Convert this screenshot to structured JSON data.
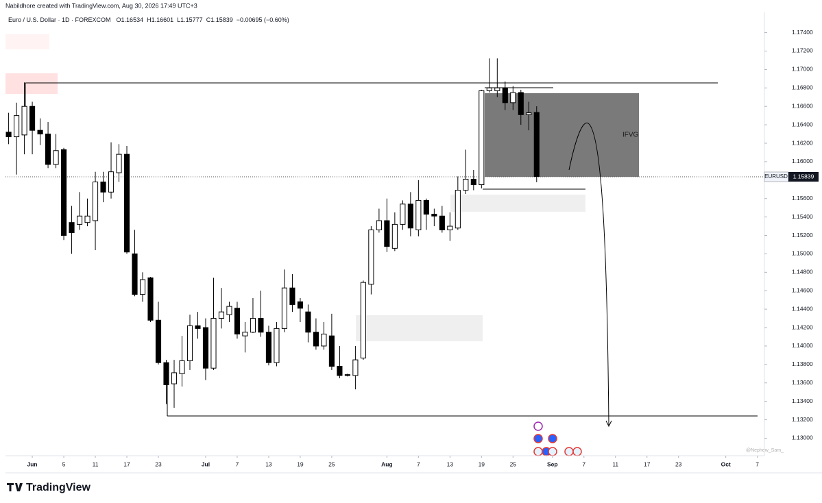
{
  "header": {
    "author_line": "Nabildhore created with TradingView.com, Aug 30, 2026 17:49 UTC+3",
    "symbol": "Euro / U.S. Dollar · 1D · FOREXCOM",
    "ohlc_prefixes": [
      "O",
      "H",
      "L",
      "C"
    ],
    "change": "−0.00695 (−0.60%)"
  },
  "chart_data": {
    "type": "candlestick",
    "symbol_tag": "EURUSD",
    "annotation": "IFVG",
    "up_color": "#ffffff",
    "down_color": "#000000",
    "outline_color": "#000000",
    "open": [
      1.1632,
      1.1627,
      1.1629,
      1.166,
      1.1634,
      1.163,
      1.1597,
      1.1613,
      1.1534,
      1.1532,
      1.1534,
      1.1536,
      1.1578,
      1.1567,
      1.1588,
      1.1608,
      1.15,
      1.1456,
      1.1474,
      1.1428,
      1.1382,
      1.1359,
      1.137,
      1.1384,
      1.1422,
      1.142,
      1.1376,
      1.143,
      1.1434,
      1.1441,
      1.1411,
      1.1415,
      1.143,
      1.1415,
      1.1382,
      1.1419,
      1.1463,
      1.1448,
      1.1437,
      1.1415,
      1.14,
      1.1411,
      1.1378,
      1.1369,
      1.1368,
      1.1387,
      1.1467,
      1.1526,
      1.1536,
      1.1506,
      1.1532,
      1.1554,
      1.1526,
      1.1558,
      1.1543,
      1.1541,
      1.1526,
      1.1528,
      1.1569,
      1.1581,
      1.1575,
      1.1677,
      1.1677,
      1.168,
      1.1664,
      1.1675,
      1.1651,
      1.16534
    ],
    "high": [
      1.1653,
      1.1664,
      1.1686,
      1.1665,
      1.1647,
      1.1643,
      1.163,
      1.1615,
      1.1552,
      1.1567,
      1.156,
      1.1589,
      1.1589,
      1.1621,
      1.1619,
      1.1617,
      1.1526,
      1.148,
      1.1475,
      1.1448,
      1.1385,
      1.1385,
      1.1411,
      1.1434,
      1.1437,
      1.143,
      1.1474,
      1.1463,
      1.1448,
      1.1448,
      1.1426,
      1.1452,
      1.146,
      1.1422,
      1.1426,
      1.1483,
      1.1478,
      1.1452,
      1.1445,
      1.143,
      1.1426,
      1.1435,
      1.14,
      1.137,
      1.14,
      1.1471,
      1.153,
      1.1549,
      1.156,
      1.1545,
      1.1558,
      1.1567,
      1.158,
      1.156,
      1.1549,
      1.1552,
      1.1545,
      1.1584,
      1.1613,
      1.1591,
      1.1678,
      1.1712,
      1.1712,
      1.1687,
      1.1682,
      1.1678,
      1.1665,
      1.16601
    ],
    "low": [
      1.1619,
      1.1586,
      1.1608,
      1.1608,
      1.1618,
      1.1593,
      1.1593,
      1.1515,
      1.15,
      1.1526,
      1.153,
      1.1504,
      1.1556,
      1.156,
      1.1578,
      1.15,
      1.1454,
      1.1448,
      1.1426,
      1.138,
      1.1337,
      1.1333,
      1.1356,
      1.1374,
      1.1408,
      1.1363,
      1.1374,
      1.1419,
      1.1426,
      1.1408,
      1.1393,
      1.1414,
      1.141,
      1.1379,
      1.1378,
      1.1415,
      1.1437,
      1.1426,
      1.1404,
      1.1396,
      1.1396,
      1.1374,
      1.1365,
      1.1367,
      1.1353,
      1.1385,
      1.1456,
      1.1523,
      1.1502,
      1.1503,
      1.1526,
      1.1519,
      1.1519,
      1.1526,
      1.153,
      1.1523,
      1.1514,
      1.1526,
      1.1565,
      1.1569,
      1.1571,
      1.1675,
      1.167,
      1.1656,
      1.1656,
      1.164,
      1.1634,
      1.15777
    ],
    "close": [
      1.1627,
      1.165,
      1.166,
      1.1634,
      1.163,
      1.1597,
      1.1612,
      1.152,
      1.1523,
      1.1541,
      1.1541,
      1.1578,
      1.1567,
      1.1589,
      1.1608,
      1.1502,
      1.1456,
      1.1472,
      1.1428,
      1.1382,
      1.1358,
      1.1371,
      1.1384,
      1.1422,
      1.1419,
      1.1376,
      1.143,
      1.1437,
      1.1443,
      1.1413,
      1.1415,
      1.143,
      1.1415,
      1.1382,
      1.1419,
      1.1463,
      1.1445,
      1.1441,
      1.1415,
      1.14,
      1.1413,
      1.1378,
      1.1368,
      1.1368,
      1.1385,
      1.1469,
      1.1526,
      1.1536,
      1.1508,
      1.1532,
      1.1554,
      1.1528,
      1.1558,
      1.1543,
      1.1541,
      1.1526,
      1.153,
      1.1569,
      1.1581,
      1.1575,
      1.1677,
      1.168,
      1.168,
      1.1664,
      1.1675,
      1.1651,
      1.1653,
      1.15839
    ],
    "xlim": [
      -0.4,
      95.9
    ],
    "ylim": [
      1.1281,
      1.1762
    ],
    "xticks": [
      {
        "value": 3,
        "label": "Jun"
      },
      {
        "value": 7,
        "label": "5"
      },
      {
        "value": 11,
        "label": "11"
      },
      {
        "value": 15,
        "label": "17"
      },
      {
        "value": 19,
        "label": "23"
      },
      {
        "value": 25,
        "label": "Jul"
      },
      {
        "value": 29,
        "label": "7"
      },
      {
        "value": 33,
        "label": "13"
      },
      {
        "value": 37,
        "label": "19"
      },
      {
        "value": 41,
        "label": "25"
      },
      {
        "value": 48,
        "label": "Aug"
      },
      {
        "value": 52,
        "label": "7"
      },
      {
        "value": 56,
        "label": "13"
      },
      {
        "value": 60,
        "label": "19"
      },
      {
        "value": 64,
        "label": "25"
      },
      {
        "value": 69,
        "label": "Sep"
      },
      {
        "value": 73,
        "label": "7"
      },
      {
        "value": 77,
        "label": "11"
      },
      {
        "value": 81,
        "label": "17"
      },
      {
        "value": 85,
        "label": "23"
      },
      {
        "value": 91,
        "label": "Oct"
      },
      {
        "value": 95,
        "label": "7"
      }
    ],
    "yticks": [
      {
        "value": 1.174,
        "label": "1.17400"
      },
      {
        "value": 1.172,
        "label": "1.17200"
      },
      {
        "value": 1.17,
        "label": "1.17000"
      },
      {
        "value": 1.168,
        "label": "1.16800"
      },
      {
        "value": 1.166,
        "label": "1.16600"
      },
      {
        "value": 1.164,
        "label": "1.16400"
      },
      {
        "value": 1.162,
        "label": "1.16200"
      },
      {
        "value": 1.16,
        "label": "1.16000"
      },
      {
        "value": 1.156,
        "label": "1.15600"
      },
      {
        "value": 1.154,
        "label": "1.15400"
      },
      {
        "value": 1.152,
        "label": "1.15200"
      },
      {
        "value": 1.15,
        "label": "1.15000"
      },
      {
        "value": 1.148,
        "label": "1.14800"
      },
      {
        "value": 1.146,
        "label": "1.14600"
      },
      {
        "value": 1.144,
        "label": "1.14400"
      },
      {
        "value": 1.142,
        "label": "1.14200"
      },
      {
        "value": 1.14,
        "label": "1.14000"
      },
      {
        "value": 1.138,
        "label": "1.13800"
      },
      {
        "value": 1.136,
        "label": "1.13600"
      },
      {
        "value": 1.134,
        "label": "1.13400"
      },
      {
        "value": 1.132,
        "label": "1.13200"
      },
      {
        "value": 1.13,
        "label": "1.13000"
      }
    ],
    "grid": false
  },
  "watermark": "@Nephew_Sam_",
  "brand": "TradingView"
}
